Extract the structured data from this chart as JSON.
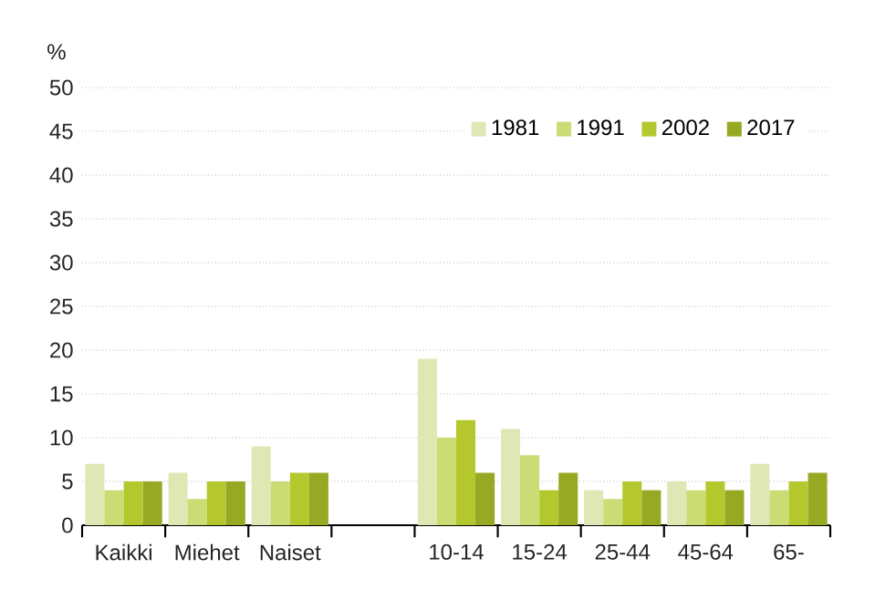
{
  "chart_data": {
    "type": "bar",
    "ylabel": "%",
    "categories": [
      "Kaikki",
      "Miehet",
      "Naiset",
      null,
      "10-14",
      "15-24",
      "25-44",
      "45-64",
      "65-"
    ],
    "series": [
      {
        "name": "1981",
        "color": "#dfe8b4",
        "values": [
          7,
          6,
          9,
          null,
          19,
          11,
          4,
          5,
          7
        ]
      },
      {
        "name": "1991",
        "color": "#cadc73",
        "values": [
          4,
          3,
          5,
          null,
          10,
          8,
          3,
          4,
          4
        ]
      },
      {
        "name": "2002",
        "color": "#b4c82d",
        "values": [
          5,
          5,
          6,
          null,
          12,
          4,
          5,
          5,
          5
        ]
      },
      {
        "name": "2017",
        "color": "#97a823",
        "values": [
          5,
          5,
          6,
          null,
          6,
          6,
          4,
          4,
          6
        ]
      }
    ],
    "ylim": [
      0,
      50
    ],
    "yticks": [
      0,
      5,
      10,
      15,
      20,
      25,
      30,
      35,
      40,
      45,
      50
    ],
    "grid": "y",
    "legend": "top right"
  }
}
